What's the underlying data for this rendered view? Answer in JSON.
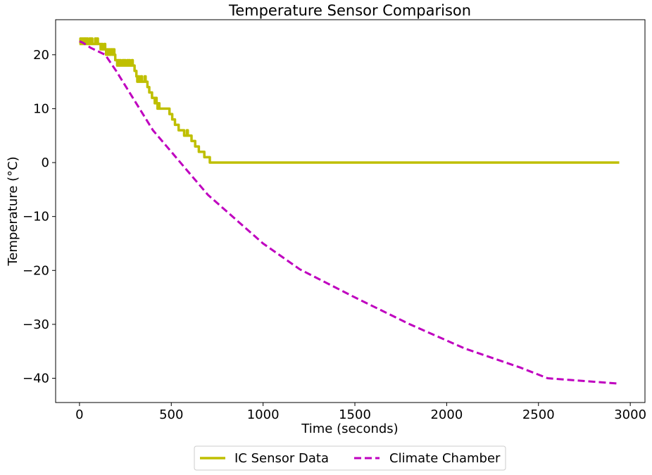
{
  "chart_data": {
    "type": "line",
    "title": "Temperature Sensor Comparison",
    "xlabel": "Time (seconds)",
    "ylabel": "Temperature (°C)",
    "xlim": [
      -130,
      3080
    ],
    "ylim": [
      -44.5,
      26.5
    ],
    "xticks": [
      0,
      500,
      1000,
      1500,
      2000,
      2500,
      3000
    ],
    "xtick_labels": [
      "0",
      "500",
      "1000",
      "1500",
      "2000",
      "2500",
      "3000"
    ],
    "yticks": [
      20,
      10,
      0,
      -10,
      -20,
      -30,
      -40
    ],
    "ytick_labels": [
      "20",
      "10",
      "0",
      "−10",
      "−20",
      "−30",
      "−40"
    ],
    "grid": false,
    "legend": {
      "placement": "bottom-center, below axes",
      "entries": [
        "IC Sensor Data",
        "Climate Chamber"
      ]
    },
    "series": [
      {
        "name": "IC Sensor Data",
        "color": "#bfbf00",
        "style": "solid",
        "x": [
          0,
          5,
          10,
          15,
          20,
          25,
          30,
          35,
          40,
          45,
          50,
          55,
          60,
          65,
          70,
          75,
          80,
          85,
          90,
          95,
          100,
          105,
          110,
          115,
          120,
          125,
          130,
          135,
          140,
          145,
          150,
          155,
          160,
          165,
          170,
          175,
          180,
          185,
          190,
          195,
          200,
          205,
          210,
          215,
          220,
          225,
          230,
          235,
          240,
          245,
          250,
          255,
          260,
          265,
          270,
          275,
          280,
          285,
          290,
          295,
          300,
          305,
          310,
          315,
          320,
          325,
          330,
          335,
          340,
          345,
          350,
          355,
          360,
          365,
          370,
          375,
          380,
          385,
          390,
          395,
          400,
          405,
          410,
          415,
          420,
          425,
          430,
          435,
          440,
          445,
          450,
          455,
          460,
          465,
          470,
          475,
          480,
          485,
          490,
          495,
          500,
          505,
          510,
          515,
          520,
          525,
          530,
          535,
          540,
          545,
          550,
          555,
          560,
          565,
          570,
          575,
          580,
          585,
          590,
          595,
          600,
          605,
          610,
          615,
          620,
          625,
          630,
          635,
          640,
          645,
          650,
          655,
          660,
          665,
          670,
          675,
          680,
          685,
          690,
          695,
          700,
          705,
          710,
          715,
          720,
          725,
          730,
          2940
        ],
        "y": [
          22,
          23,
          22,
          23,
          22,
          23,
          23,
          22,
          23,
          22,
          22,
          23,
          22,
          23,
          22,
          22,
          22,
          23,
          22,
          23,
          22,
          22,
          22,
          21,
          22,
          21,
          21,
          22,
          21,
          20,
          21,
          20,
          21,
          20,
          21,
          21,
          20,
          21,
          20,
          19,
          19,
          18,
          19,
          18,
          19,
          18,
          18,
          19,
          18,
          19,
          18,
          18,
          19,
          18,
          19,
          18,
          18,
          19,
          18,
          18,
          17,
          17,
          16,
          15,
          16,
          15,
          15,
          16,
          15,
          15,
          15,
          16,
          15,
          15,
          14,
          14,
          13,
          13,
          13,
          12,
          12,
          12,
          11,
          12,
          11,
          10,
          11,
          10,
          10,
          10,
          10,
          10,
          10,
          10,
          10,
          10,
          10,
          10,
          9,
          9,
          9,
          8,
          8,
          8,
          7,
          7,
          7,
          7,
          6,
          6,
          6,
          6,
          6,
          6,
          5,
          5,
          5,
          6,
          5,
          5,
          5,
          5,
          4,
          4,
          4,
          4,
          3,
          3,
          3,
          3,
          2,
          2,
          2,
          2,
          2,
          2,
          1,
          1,
          1,
          1,
          1,
          1,
          0,
          0,
          0,
          0,
          0,
          0
        ]
      },
      {
        "name": "Climate Chamber",
        "color": "#bf00bf",
        "style": "dashed",
        "x": [
          0,
          20,
          60,
          140,
          200,
          300,
          400,
          500,
          600,
          700,
          800,
          1000,
          1200,
          1500,
          1800,
          2100,
          2400,
          2550,
          2940
        ],
        "y": [
          22.5,
          22.2,
          21.3,
          20,
          17,
          11.5,
          6,
          2,
          -2,
          -6,
          -9,
          -15,
          -19.8,
          -25,
          -30,
          -34.5,
          -38,
          -40,
          -41
        ]
      }
    ]
  }
}
